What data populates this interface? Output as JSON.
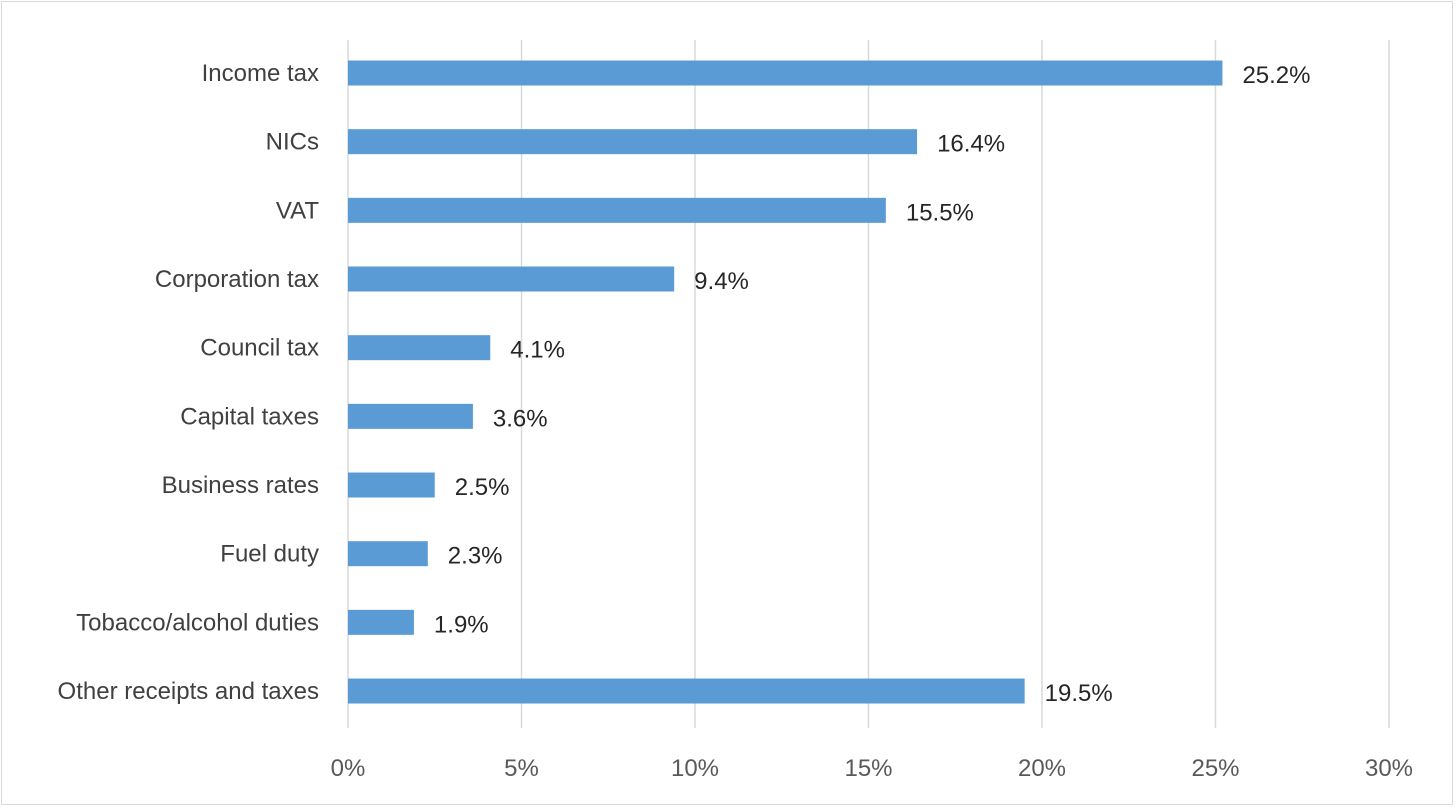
{
  "chart_data": {
    "type": "bar",
    "orientation": "horizontal",
    "categories": [
      "Income tax",
      "NICs",
      "VAT",
      "Corporation tax",
      "Council tax",
      "Capital taxes",
      "Business rates",
      "Fuel duty",
      "Tobacco/alcohol duties",
      "Other receipts and taxes"
    ],
    "values": [
      25.2,
      16.4,
      15.5,
      9.4,
      4.1,
      3.6,
      2.5,
      2.3,
      1.9,
      19.5
    ],
    "value_labels": [
      "25.2%",
      "16.4%",
      "15.5%",
      "9.4%",
      "4.1%",
      "3.6%",
      "2.5%",
      "2.3%",
      "1.9%",
      "19.5%"
    ],
    "x_ticks": [
      0,
      5,
      10,
      15,
      20,
      25,
      30
    ],
    "x_tick_labels": [
      "0%",
      "5%",
      "10%",
      "15%",
      "20%",
      "25%",
      "30%"
    ],
    "xlim": [
      0,
      30
    ],
    "title": "",
    "xlabel": "",
    "ylabel": "",
    "grid": "vertical",
    "legend": "none",
    "bar_color": "#5b9bd5",
    "grid_color": "#d9d9d9"
  }
}
